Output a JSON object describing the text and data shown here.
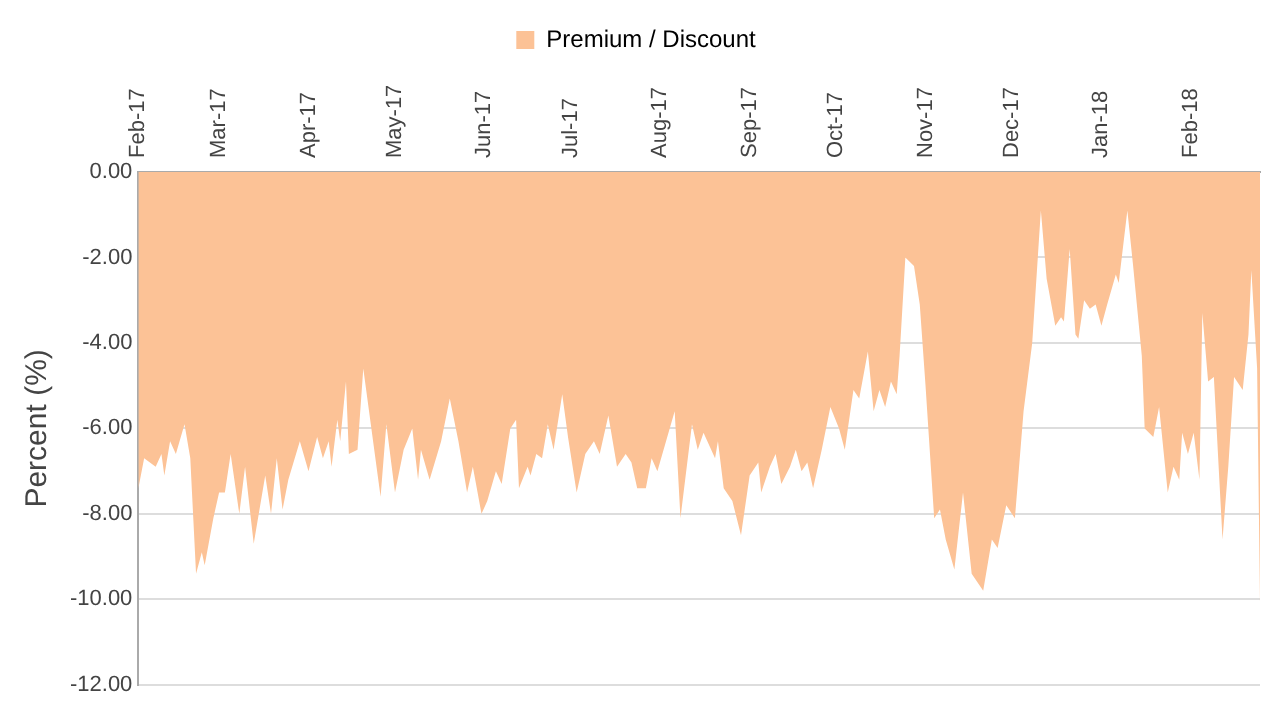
{
  "chart_data": {
    "type": "area",
    "ylabel": "Percent (%)",
    "legend": "top",
    "grid": "y",
    "marker": "none",
    "xlim": [
      "2017-02-01",
      "2018-02-25"
    ],
    "xticks": [
      {
        "value": "2017-02-01",
        "label": "Feb-17"
      },
      {
        "value": "2017-03-01",
        "label": "Mar-17"
      },
      {
        "value": "2017-04-01",
        "label": "Apr-17"
      },
      {
        "value": "2017-05-01",
        "label": "May-17"
      },
      {
        "value": "2017-06-01",
        "label": "Jun-17"
      },
      {
        "value": "2017-07-01",
        "label": "Jul-17"
      },
      {
        "value": "2017-08-01",
        "label": "Aug-17"
      },
      {
        "value": "2017-09-01",
        "label": "Sep-17"
      },
      {
        "value": "2017-10-01",
        "label": "Oct-17"
      },
      {
        "value": "2017-11-01",
        "label": "Nov-17"
      },
      {
        "value": "2017-12-01",
        "label": "Dec-17"
      },
      {
        "value": "2018-01-01",
        "label": "Jan-18"
      },
      {
        "value": "2018-02-01",
        "label": "Feb-18"
      }
    ],
    "ylim": [
      -12,
      0
    ],
    "yticks": [
      {
        "value": 0,
        "label": "0.00"
      },
      {
        "value": -2,
        "label": "-2.00"
      },
      {
        "value": -4,
        "label": "-4.00"
      },
      {
        "value": -6,
        "label": "-6.00"
      },
      {
        "value": -8,
        "label": "-8.00"
      },
      {
        "value": -10,
        "label": "-10.00"
      },
      {
        "value": -12,
        "label": "-12.00"
      }
    ],
    "x": [
      "2017-02-01",
      "2017-02-03",
      "2017-02-07",
      "2017-02-09",
      "2017-02-10",
      "2017-02-12",
      "2017-02-14",
      "2017-02-17",
      "2017-02-19",
      "2017-02-21",
      "2017-02-23",
      "2017-02-24",
      "2017-02-27",
      "2017-03-01",
      "2017-03-03",
      "2017-03-05",
      "2017-03-08",
      "2017-03-10",
      "2017-03-13",
      "2017-03-17",
      "2017-03-19",
      "2017-03-21",
      "2017-03-23",
      "2017-03-25",
      "2017-03-29",
      "2017-04-01",
      "2017-04-04",
      "2017-04-06",
      "2017-04-08",
      "2017-04-09",
      "2017-04-11",
      "2017-04-12",
      "2017-04-14",
      "2017-04-15",
      "2017-04-18",
      "2017-04-20",
      "2017-04-26",
      "2017-04-28",
      "2017-05-01",
      "2017-05-04",
      "2017-05-07",
      "2017-05-09",
      "2017-05-10",
      "2017-05-13",
      "2017-05-17",
      "2017-05-20",
      "2017-05-23",
      "2017-05-26",
      "2017-05-28",
      "2017-05-31",
      "2017-06-02",
      "2017-06-05",
      "2017-06-07",
      "2017-06-10",
      "2017-06-12",
      "2017-06-13",
      "2017-06-16",
      "2017-06-17",
      "2017-06-19",
      "2017-06-21",
      "2017-06-23",
      "2017-06-25",
      "2017-06-28",
      "2017-06-30",
      "2017-07-03",
      "2017-07-06",
      "2017-07-09",
      "2017-07-11",
      "2017-07-14",
      "2017-07-17",
      "2017-07-20",
      "2017-07-22",
      "2017-07-24",
      "2017-07-27",
      "2017-07-29",
      "2017-07-31",
      "2017-08-03",
      "2017-08-06",
      "2017-08-08",
      "2017-08-12",
      "2017-08-14",
      "2017-08-16",
      "2017-08-20",
      "2017-08-21",
      "2017-08-23",
      "2017-08-26",
      "2017-08-29",
      "2017-09-01",
      "2017-09-04",
      "2017-09-05",
      "2017-09-08",
      "2017-09-10",
      "2017-09-12",
      "2017-09-15",
      "2017-09-17",
      "2017-09-19",
      "2017-09-21",
      "2017-09-23",
      "2017-09-26",
      "2017-09-29",
      "2017-10-02",
      "2017-10-04",
      "2017-10-07",
      "2017-10-09",
      "2017-10-12",
      "2017-10-14",
      "2017-10-16",
      "2017-10-18",
      "2017-10-20",
      "2017-10-22",
      "2017-10-23",
      "2017-10-25",
      "2017-10-28",
      "2017-10-30",
      "2017-11-01",
      "2017-11-04",
      "2017-11-06",
      "2017-11-08",
      "2017-11-11",
      "2017-11-14",
      "2017-11-17",
      "2017-11-21",
      "2017-11-24",
      "2017-11-26",
      "2017-11-29",
      "2017-12-02",
      "2017-12-05",
      "2017-12-08",
      "2017-12-11",
      "2017-12-13",
      "2017-12-16",
      "2017-12-18",
      "2017-12-19",
      "2017-12-21",
      "2017-12-23",
      "2017-12-24",
      "2017-12-26",
      "2017-12-28",
      "2017-12-30",
      "2018-01-01",
      "2018-01-03",
      "2018-01-06",
      "2018-01-07",
      "2018-01-10",
      "2018-01-12",
      "2018-01-15",
      "2018-01-16",
      "2018-01-19",
      "2018-01-21",
      "2018-01-24",
      "2018-01-26",
      "2018-01-28",
      "2018-01-29",
      "2018-01-31",
      "2018-02-02",
      "2018-02-04",
      "2018-02-05",
      "2018-02-07",
      "2018-02-09",
      "2018-02-12",
      "2018-02-14",
      "2018-02-16",
      "2018-02-19",
      "2018-02-21",
      "2018-02-22",
      "2018-02-24",
      "2018-02-25"
    ],
    "series": [
      {
        "name": "Premium / Discount",
        "color": "#fcc296",
        "values": [
          -7.4,
          -6.7,
          -6.9,
          -6.6,
          -7.1,
          -6.3,
          -6.6,
          -5.9,
          -6.7,
          -9.4,
          -8.9,
          -9.2,
          -8.1,
          -7.5,
          -7.5,
          -6.6,
          -8.0,
          -6.9,
          -8.7,
          -7.1,
          -8.0,
          -6.7,
          -7.9,
          -7.2,
          -6.3,
          -7.0,
          -6.2,
          -6.7,
          -6.3,
          -6.9,
          -5.8,
          -6.3,
          -4.9,
          -6.6,
          -6.5,
          -4.6,
          -7.6,
          -5.9,
          -7.5,
          -6.5,
          -6.0,
          -7.2,
          -6.5,
          -7.2,
          -6.3,
          -5.3,
          -6.3,
          -7.5,
          -6.9,
          -8.0,
          -7.7,
          -7.0,
          -7.3,
          -6.0,
          -5.8,
          -7.4,
          -6.9,
          -7.1,
          -6.6,
          -6.7,
          -5.9,
          -6.5,
          -5.2,
          -6.2,
          -7.5,
          -6.6,
          -6.3,
          -6.6,
          -5.7,
          -6.9,
          -6.6,
          -6.8,
          -7.4,
          -7.4,
          -6.7,
          -7.0,
          -6.3,
          -5.6,
          -8.1,
          -5.9,
          -6.5,
          -6.1,
          -6.7,
          -6.3,
          -7.4,
          -7.7,
          -8.5,
          -7.1,
          -6.8,
          -7.5,
          -6.9,
          -6.6,
          -7.3,
          -6.9,
          -6.5,
          -7.0,
          -6.8,
          -7.4,
          -6.5,
          -5.5,
          -6.0,
          -6.5,
          -5.1,
          -5.3,
          -4.2,
          -5.6,
          -5.1,
          -5.5,
          -4.9,
          -5.2,
          -4.3,
          -2.0,
          -2.2,
          -3.1,
          -5.0,
          -8.1,
          -7.9,
          -8.6,
          -9.3,
          -7.5,
          -9.4,
          -9.8,
          -8.6,
          -8.8,
          -7.8,
          -8.1,
          -5.6,
          -4.0,
          -0.9,
          -2.5,
          -3.6,
          -3.4,
          -3.5,
          -1.8,
          -3.8,
          -3.9,
          -3.0,
          -3.2,
          -3.1,
          -3.6,
          -3.1,
          -2.4,
          -2.6,
          -0.9,
          -2.2,
          -4.3,
          -6.0,
          -6.2,
          -5.5,
          -7.5,
          -6.9,
          -7.2,
          -6.1,
          -6.6,
          -6.1,
          -7.2,
          -3.3,
          -4.9,
          -4.8,
          -8.6,
          -6.9,
          -4.8,
          -5.1,
          -3.8,
          -2.3,
          -4.6,
          -10.1
        ]
      }
    ]
  }
}
